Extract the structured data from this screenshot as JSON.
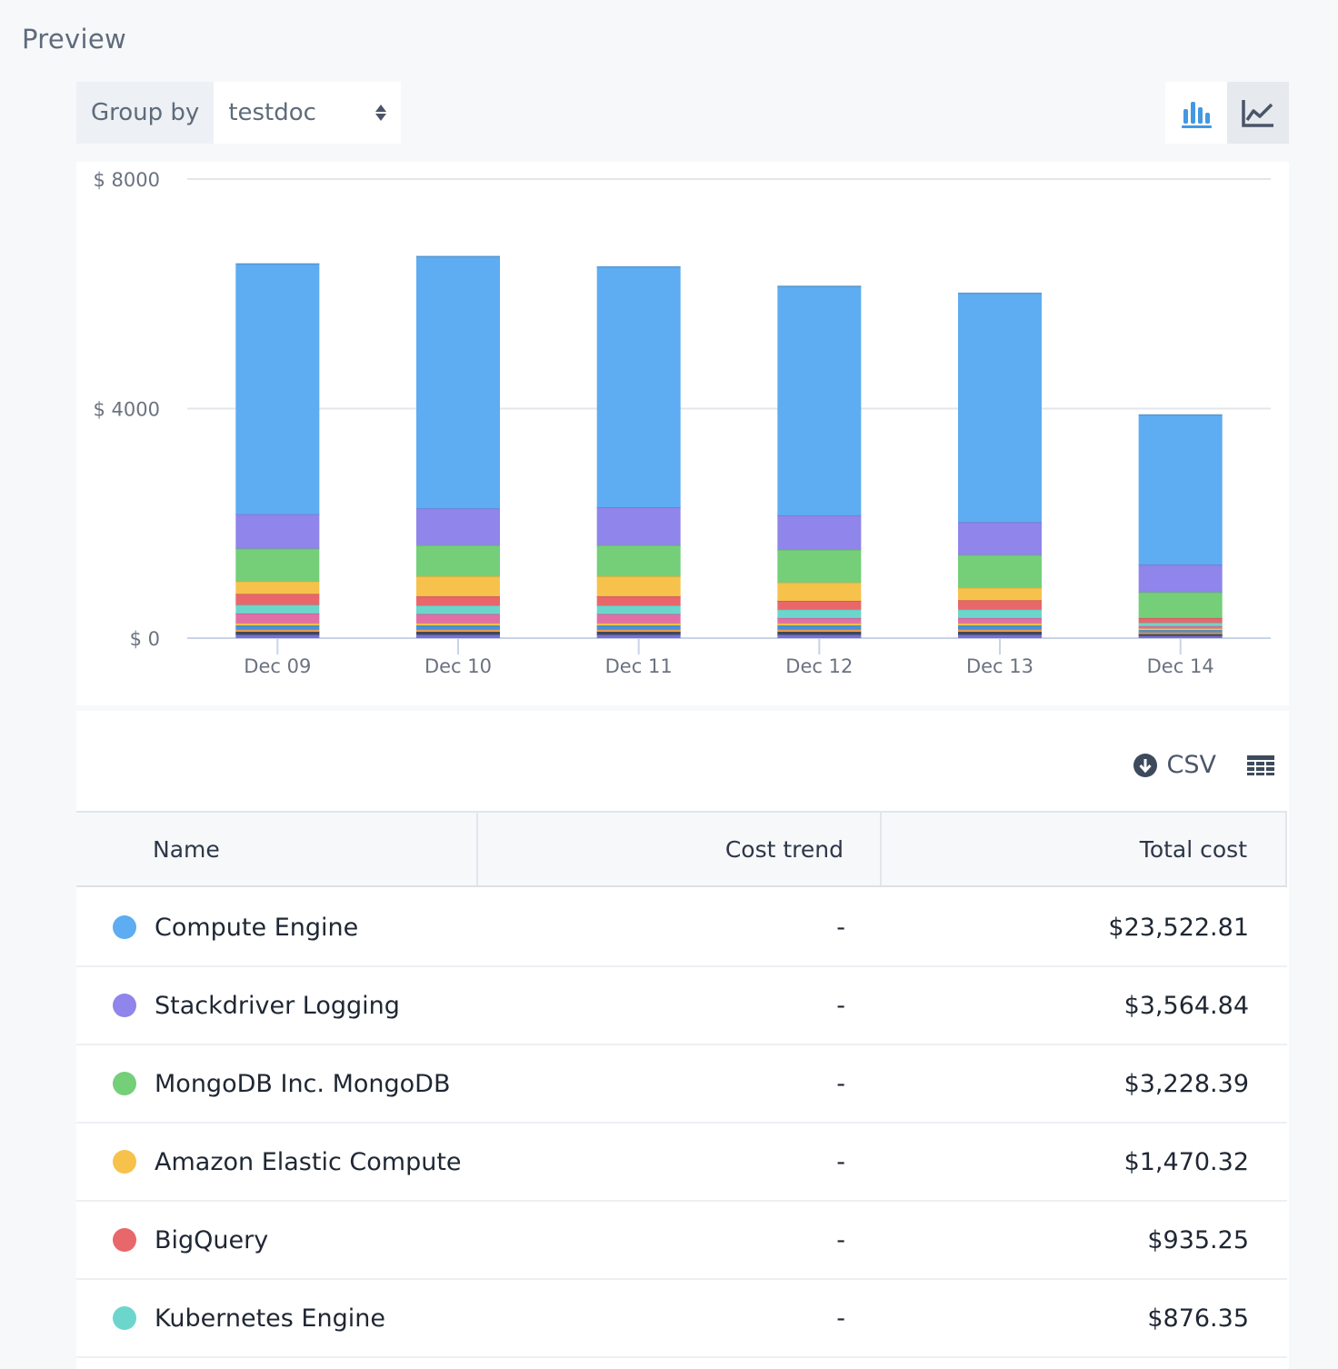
{
  "header": {
    "title": "Preview"
  },
  "group_by": {
    "label": "Group by",
    "value": "testdoc"
  },
  "view_toggle": {
    "active": "bar",
    "options": [
      "bar-chart-icon",
      "line-chart-icon"
    ]
  },
  "table_tools": {
    "csv_label": "CSV"
  },
  "table": {
    "columns": [
      "Name",
      "Cost trend",
      "Total cost"
    ],
    "rows": [
      {
        "name": "Compute Engine",
        "trend": "-",
        "total": "$23,522.81",
        "color": "#5eacf1"
      },
      {
        "name": "Stackdriver Logging",
        "trend": "-",
        "total": "$3,564.84",
        "color": "#8f85ea"
      },
      {
        "name": "MongoDB Inc. MongoDB",
        "trend": "-",
        "total": "$3,228.39",
        "color": "#74cf78"
      },
      {
        "name": "Amazon Elastic Compute",
        "trend": "-",
        "total": "$1,470.32",
        "color": "#f7c24b"
      },
      {
        "name": "BigQuery",
        "trend": "-",
        "total": "$935.25",
        "color": "#e8676a"
      },
      {
        "name": "Kubernetes Engine",
        "trend": "-",
        "total": "$876.35",
        "color": "#6cd6cc"
      }
    ]
  },
  "chart_data": {
    "type": "bar",
    "stacked": true,
    "categories": [
      "Dec 09",
      "Dec 10",
      "Dec 11",
      "Dec 12",
      "Dec 13",
      "Dec 14"
    ],
    "ylim": [
      0,
      8000
    ],
    "yticks": [
      0,
      4000,
      8000
    ],
    "ytick_labels": [
      "$ 0",
      "$ 4000",
      "$ 8000"
    ],
    "grid": true,
    "series": [
      {
        "name": "",
        "color": "#7b6fd6",
        "values": [
          60,
          60,
          60,
          60,
          60,
          40
        ]
      },
      {
        "name": "",
        "color": "#3d4a5c",
        "values": [
          50,
          50,
          50,
          50,
          50,
          30
        ]
      },
      {
        "name": "",
        "color": "#f39a4c",
        "values": [
          40,
          40,
          40,
          40,
          40,
          30
        ]
      },
      {
        "name": "",
        "color": "#4a90d9",
        "values": [
          70,
          70,
          70,
          70,
          70,
          40
        ]
      },
      {
        "name": "",
        "color": "#f2c744",
        "values": [
          40,
          40,
          40,
          40,
          40,
          30
        ]
      },
      {
        "name": "",
        "color": "#e06fa8",
        "values": [
          170,
          160,
          160,
          90,
          90,
          40
        ]
      },
      {
        "name": "Kubernetes Engine",
        "color": "#6cd6cc",
        "values": [
          150,
          150,
          150,
          150,
          150,
          60
        ]
      },
      {
        "name": "BigQuery",
        "color": "#e8676a",
        "values": [
          190,
          160,
          160,
          150,
          160,
          80
        ]
      },
      {
        "name": "Amazon Elastic Compute",
        "color": "#f7c24b",
        "values": [
          220,
          350,
          350,
          320,
          220,
          0
        ]
      },
      {
        "name": "MongoDB Inc. MongoDB",
        "color": "#74cf78",
        "values": [
          570,
          540,
          540,
          570,
          570,
          450
        ]
      },
      {
        "name": "Stackdriver Logging",
        "color": "#8f85ea",
        "values": [
          600,
          640,
          660,
          600,
          570,
          480
        ]
      },
      {
        "name": "Compute Engine",
        "color": "#5eacf1",
        "values": [
          4360,
          4390,
          4190,
          3990,
          3990,
          2610
        ]
      }
    ]
  }
}
